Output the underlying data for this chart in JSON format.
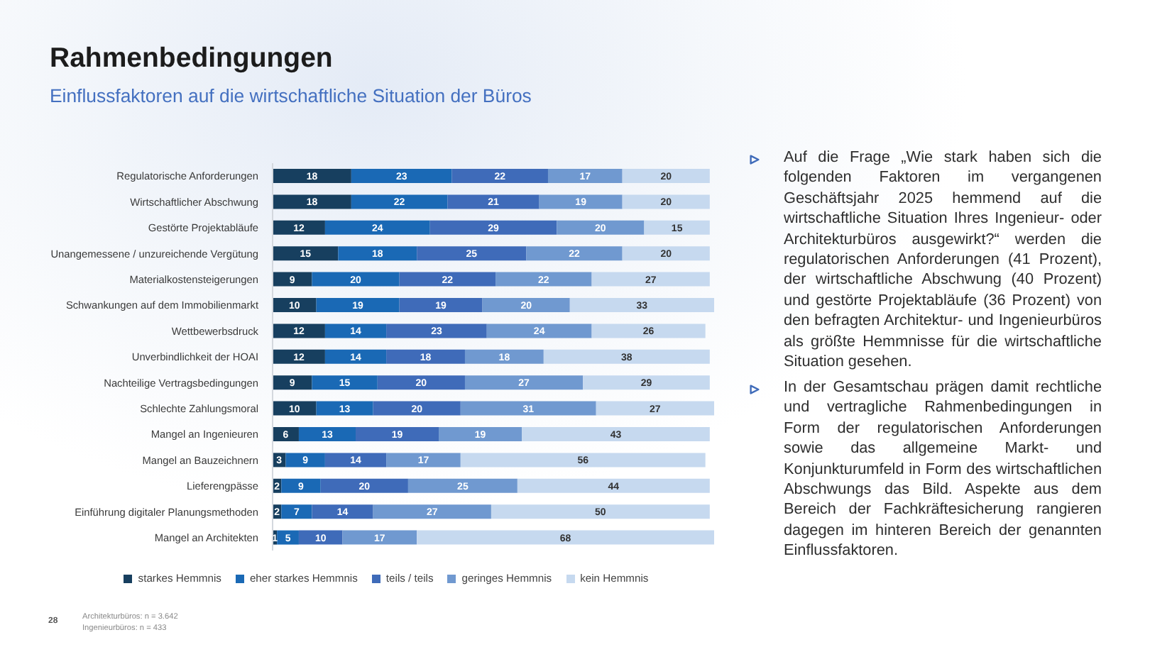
{
  "chart_data": {
    "type": "bar",
    "title": "Rahmenbedingungen",
    "subtitle": "Einflussfaktoren auf die wirtschaftliche Situation der Büros",
    "orientation": "horizontal",
    "stacked": true,
    "data_labels": true,
    "legend": "bottom",
    "tick_labels": "y",
    "categories": [
      "Regulatorische Anforderungen",
      "Wirtschaftlicher Abschwung",
      "Gestörte Projektabläufe",
      "Unangemessene / unzureichende Vergütung",
      "Materialkostensteigerungen",
      "Schwankungen auf dem Immobilienmarkt",
      "Wettbewerbsdruck",
      "Unverbindlichkeit der HOAI",
      "Nachteilige Vertragsbedingungen",
      "Schlechte Zahlungsmoral",
      "Mangel an Ingenieuren",
      "Mangel an Bauzeichnern",
      "Lieferengpässe",
      "Einführung digitaler Planungsmethoden",
      "Mangel an Architekten"
    ],
    "series": [
      {
        "name": "starkes Hemmnis",
        "color": "#173f5f",
        "values": [
          18,
          18,
          12,
          15,
          9,
          10,
          12,
          12,
          9,
          10,
          6,
          3,
          2,
          2,
          1
        ]
      },
      {
        "name": "eher starkes Hemmnis",
        "color": "#1a69b5",
        "values": [
          23,
          22,
          24,
          18,
          20,
          19,
          14,
          14,
          15,
          13,
          13,
          9,
          9,
          7,
          5
        ]
      },
      {
        "name": "teils / teils",
        "color": "#3f6bb9",
        "values": [
          22,
          21,
          29,
          25,
          22,
          19,
          23,
          18,
          20,
          20,
          19,
          14,
          20,
          14,
          10
        ]
      },
      {
        "name": "geringes Hemmnis",
        "color": "#7099d0",
        "values": [
          17,
          19,
          20,
          22,
          22,
          20,
          24,
          18,
          27,
          31,
          19,
          17,
          25,
          27,
          17
        ]
      },
      {
        "name": "kein Hemmnis",
        "color": "#c6d9ef",
        "values": [
          20,
          20,
          15,
          20,
          27,
          33,
          26,
          38,
          29,
          27,
          43,
          56,
          44,
          50,
          68
        ]
      }
    ],
    "annotations": [
      "Auf die Frage „Wie stark haben sich die folgenden Faktoren im vergangenen Geschäftsjahr 2025 hemmend auf die wirtschaftliche Situation Ihres Ingenieur- oder Architekturbüros ausgewirkt?“ werden die regulatorischen Anforderungen (41 Prozent), der wirtschaftliche Abschwung (40 Prozent) und gestörte Projektabläufe (36 Prozent) von den befragten Architektur- und Ingenieurbüros als größte Hemmnisse für die wirtschaftliche Situation gesehen.",
      "In der Gesamtschau prägen damit rechtliche und vertragliche Rahmenbedingungen in Form der regulatorischen Anforderungen sowie das allgemeine Markt- und Konjunkturumfeld in Form des wirtschaftlichen Abschwungs das Bild. Aspekte aus dem Bereich der Fachkräftesicherung rangieren dagegen im hinteren Bereich der genannten Einflussfaktoren.",
      "Architekturbüros: n = 3.642",
      "Ingenieurbüros: n = 433",
      "28"
    ]
  }
}
